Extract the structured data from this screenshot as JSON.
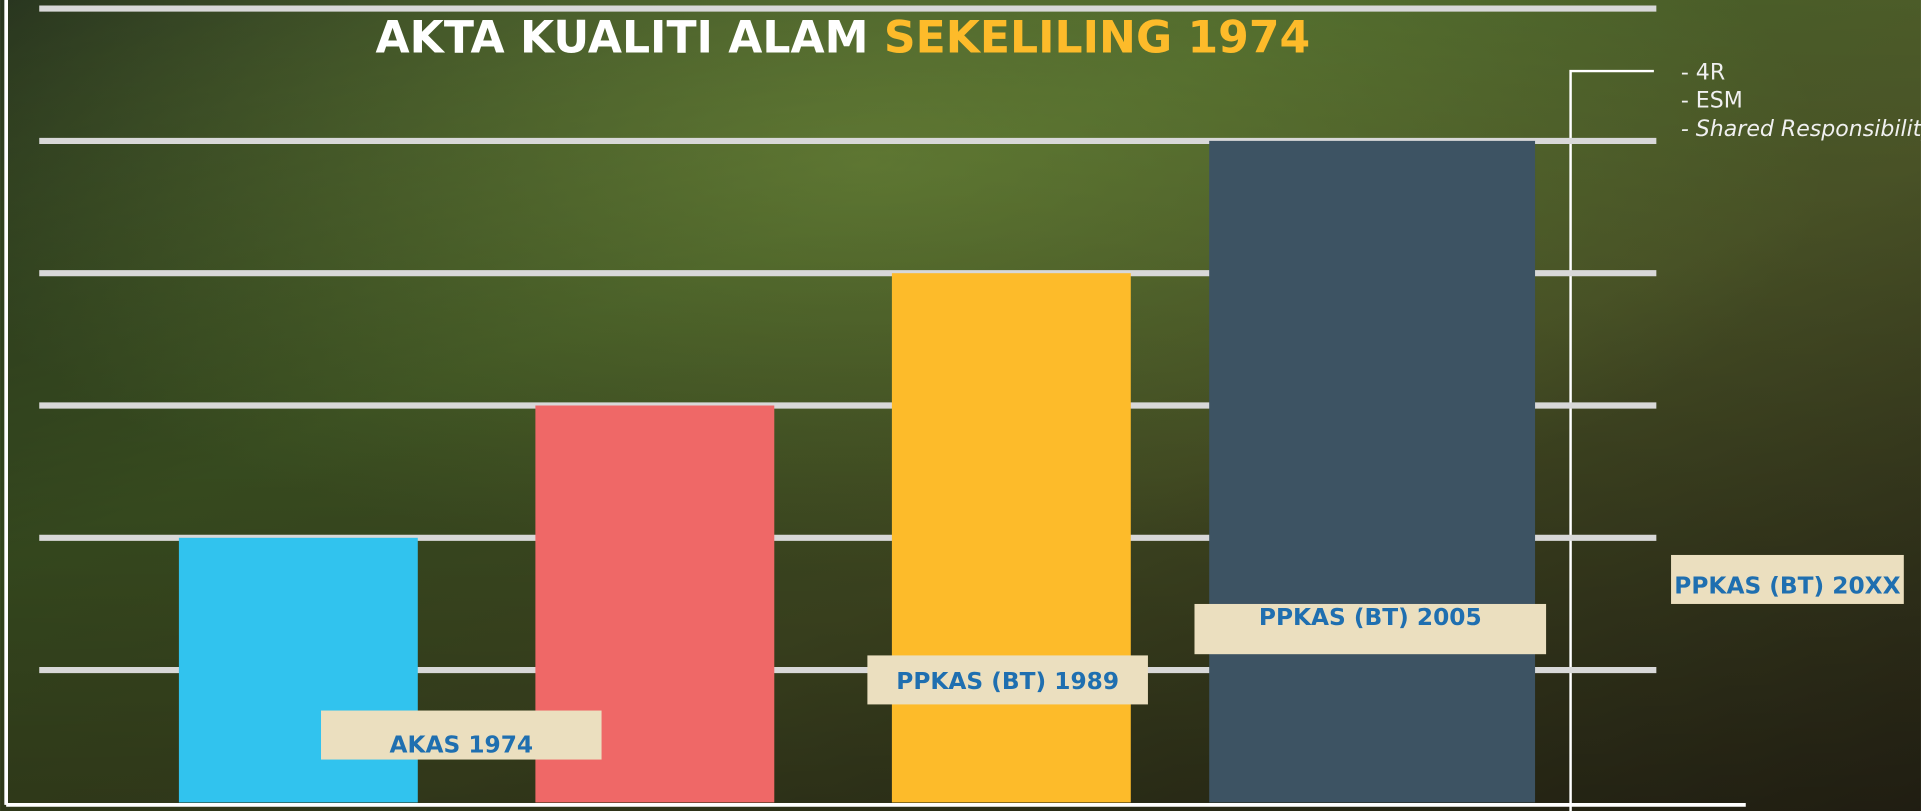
{
  "chart_data": {
    "type": "bar",
    "title": "AKTA KUALITI ALAM",
    "title_highlight": "SEKELILING 1974",
    "categories": [
      null,
      null,
      null,
      null
    ],
    "values": [
      2,
      3,
      4,
      5
    ],
    "colors": [
      "#31c3ee",
      "#ef6867",
      "#fdbb2a",
      "#3d5363"
    ],
    "ylim": [
      0,
      6
    ],
    "yticks": [
      1,
      2,
      3,
      4,
      5,
      6
    ],
    "grid": true,
    "annotations": [
      "AKAS 1974",
      "PPKAS (BT)  1989",
      "PPKAS (BT) 2005",
      "PPKAS (BT) 20XX"
    ],
    "notes": [
      "- 4R",
      "- ESM",
      "- Shared Responsibility"
    ]
  }
}
